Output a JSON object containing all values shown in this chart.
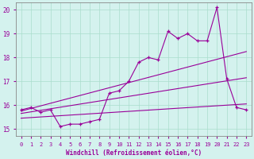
{
  "xlabel": "Windchill (Refroidissement éolien,°C)",
  "bg_color": "#d4f2ee",
  "line_color": "#990099",
  "grid_color": "#aaddcc",
  "xlim": [
    -0.5,
    23.5
  ],
  "ylim": [
    14.7,
    20.3
  ],
  "yticks": [
    15,
    16,
    17,
    18,
    19,
    20
  ],
  "xticks": [
    0,
    1,
    2,
    3,
    4,
    5,
    6,
    7,
    8,
    9,
    10,
    11,
    12,
    13,
    14,
    15,
    16,
    17,
    18,
    19,
    20,
    21,
    22,
    23
  ],
  "hours": [
    0,
    1,
    2,
    3,
    4,
    5,
    6,
    7,
    8,
    9,
    10,
    11,
    12,
    13,
    14,
    15,
    16,
    17,
    18,
    19,
    20,
    21,
    22,
    23
  ],
  "windchill": [
    15.8,
    15.9,
    15.7,
    15.8,
    15.1,
    15.2,
    15.2,
    15.3,
    15.4,
    16.5,
    16.6,
    17.0,
    17.8,
    18.0,
    17.9,
    19.1,
    18.8,
    19.0,
    18.7,
    18.7,
    20.1,
    17.1,
    15.9,
    15.8
  ],
  "trend1_start": 15.45,
  "trend1_end": 16.05,
  "trend2_start": 15.65,
  "trend2_end": 17.15,
  "trend3_start": 15.75,
  "trend3_end": 18.25
}
